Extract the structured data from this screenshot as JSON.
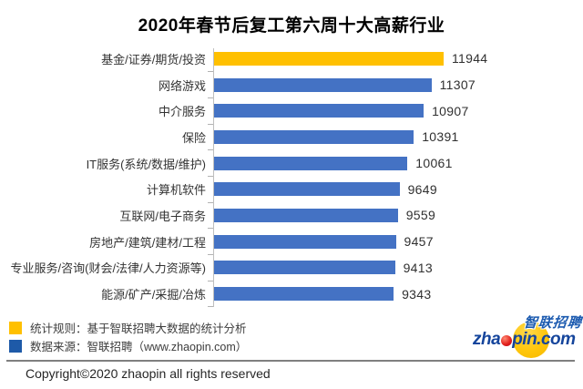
{
  "title": "2020年春节后复工第六周十大高薪行业",
  "chart_data": {
    "type": "bar",
    "orientation": "horizontal",
    "title": "2020年春节后复工第六周十大高薪行业",
    "categories": [
      "基金/证券/期货/投资",
      "网络游戏",
      "中介服务",
      "保险",
      "IT服务(系统/数据/维护)",
      "计算机软件",
      "互联网/电子商务",
      "房地产/建筑/建材/工程",
      "专业服务/咨询(财会/法律/人力资源等)",
      "能源/矿产/采掘/冶炼"
    ],
    "values": [
      11944,
      11307,
      10907,
      10391,
      10061,
      9649,
      9559,
      9457,
      9413,
      9343
    ],
    "xlim": [
      0,
      12000
    ],
    "grid": false,
    "data_labels": true,
    "highlight_index": 0,
    "highlight_color": "#FFC000",
    "bar_color": "#4472C4",
    "axis_color": "#BFBFBF"
  },
  "legend": {
    "items": [
      {
        "swatch_color": "#FFC000",
        "label": "统计规则：基于智联招聘大数据的统计分析"
      },
      {
        "swatch_color": "#1E5AA8",
        "label": "数据来源：智联招聘（www.zhaopin.com）"
      }
    ]
  },
  "logo": {
    "brand_cn": "智联招聘",
    "wordmark_left": "zha",
    "wordmark_right": "pin.com"
  },
  "footer": {
    "copyright": "Copyright©2020 zhaopin all rights reserved"
  }
}
